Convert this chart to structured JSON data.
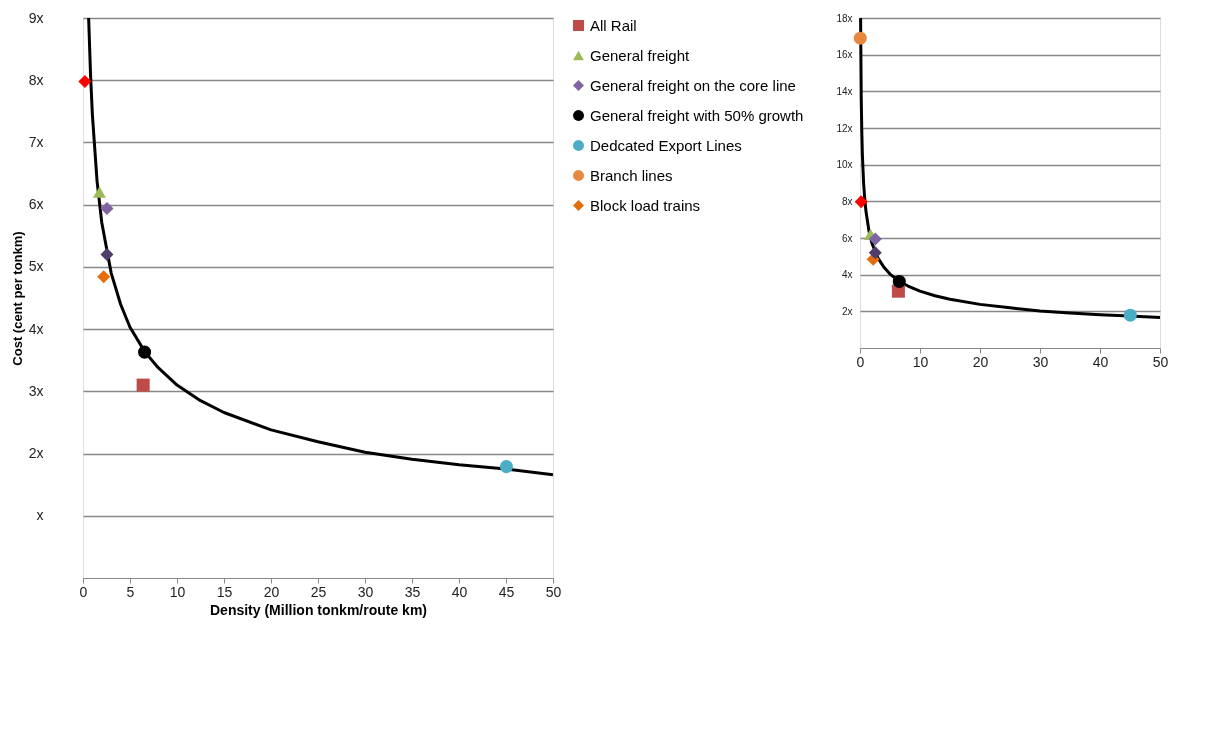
{
  "chart_data": [
    {
      "type": "scatter",
      "xlabel": "Density (Million tonkm/route km)",
      "ylabel": "Cost (cent per tonkm)",
      "xlim": [
        0,
        50
      ],
      "ylim": [
        0,
        9
      ],
      "xticks": [
        0,
        5,
        10,
        15,
        20,
        25,
        30,
        35,
        40,
        45,
        50
      ],
      "yticks": [
        {
          "value": 1,
          "label": "x"
        },
        {
          "value": 2,
          "label": "2x"
        },
        {
          "value": 3,
          "label": "3x"
        },
        {
          "value": 4,
          "label": "4x"
        },
        {
          "value": 5,
          "label": "5x"
        },
        {
          "value": 6,
          "label": "6x"
        },
        {
          "value": 7,
          "label": "7x"
        },
        {
          "value": 8,
          "label": "8x"
        },
        {
          "value": 9,
          "label": "9x"
        }
      ],
      "grid": "y",
      "legend": "right",
      "series": [
        {
          "type": "line",
          "color": "#000000",
          "x": [
            0.6,
            0.8,
            1,
            1.5,
            2,
            3,
            4,
            5,
            6.6,
            8,
            10,
            12.5,
            15,
            20,
            25,
            30,
            35,
            40,
            45,
            50
          ],
          "values": [
            9.0,
            8.1,
            7.44,
            6.37,
            5.71,
            4.9,
            4.4,
            4.03,
            3.63,
            3.38,
            3.1,
            2.85,
            2.66,
            2.38,
            2.19,
            2.02,
            1.91,
            1.82,
            1.75,
            1.66
          ]
        },
        {
          "name": "All Rail",
          "color": "#be4b48",
          "marker": "square",
          "x": [
            6.4
          ],
          "values": [
            3.1
          ]
        },
        {
          "name": "General freight",
          "color": "#9bbb59",
          "marker": "triangle",
          "x": [
            1.75
          ],
          "values": [
            6.2
          ]
        },
        {
          "name": "General freight on the core line",
          "color": "#8064a2",
          "marker": "diamond",
          "x": [
            2.55
          ],
          "values": [
            5.94
          ]
        },
        {
          "name": "General freight with 50% growth",
          "color": "#000000",
          "marker": "circle",
          "x": [
            6.55
          ],
          "values": [
            3.63
          ]
        },
        {
          "name": "Dedcated Export Lines",
          "color": "#4bacc6",
          "marker": "circle",
          "x": [
            45.05
          ],
          "values": [
            1.79
          ]
        },
        {
          "name": "Branch lines",
          "color": "#e8873f",
          "marker": "circle"
        },
        {
          "name": "Block load trains",
          "color": "#e46c0a",
          "marker": "diamond",
          "x": [
            2.2
          ],
          "values": [
            4.84
          ]
        },
        {
          "color": "#ff0000",
          "marker": "diamond",
          "x": [
            0.2
          ],
          "values": [
            7.98
          ]
        },
        {
          "color": "#4f3d6b",
          "marker": "diamond",
          "x": [
            2.55
          ],
          "values": [
            5.2
          ]
        }
      ]
    },
    {
      "type": "scatter",
      "xlim": [
        0,
        50
      ],
      "ylim": [
        0,
        18
      ],
      "xticks": [
        0,
        10,
        20,
        30,
        40,
        50
      ],
      "yticks": [
        {
          "value": 2,
          "label": "2x"
        },
        {
          "value": 4,
          "label": "4x"
        },
        {
          "value": 6,
          "label": "6x"
        },
        {
          "value": 8,
          "label": "8x"
        },
        {
          "value": 10,
          "label": "10x"
        },
        {
          "value": 12,
          "label": "12x"
        },
        {
          "value": 14,
          "label": "14x"
        },
        {
          "value": 16,
          "label": "16x"
        },
        {
          "value": 18,
          "label": "18x"
        }
      ],
      "grid": "y",
      "series": [
        {
          "type": "line",
          "color": "#000000",
          "x": [
            0.1,
            0.2,
            0.3,
            0.4,
            0.6,
            0.8,
            1,
            1.5,
            2,
            3,
            4,
            5,
            6.6,
            8,
            10,
            12.5,
            15,
            20,
            25,
            30,
            35,
            40,
            45,
            50
          ],
          "values": [
            18.0,
            13.7,
            11.8,
            10.5,
            9.0,
            8.1,
            7.44,
            6.37,
            5.71,
            4.9,
            4.4,
            4.03,
            3.63,
            3.38,
            3.1,
            2.85,
            2.66,
            2.38,
            2.19,
            2.02,
            1.91,
            1.82,
            1.75,
            1.66
          ]
        },
        {
          "color": "#be4b48",
          "marker": "square",
          "x": [
            6.4
          ],
          "values": [
            3.1
          ]
        },
        {
          "color": "#9bbb59",
          "marker": "triangle",
          "x": [
            1.75
          ],
          "values": [
            6.2
          ]
        },
        {
          "color": "#8064a2",
          "marker": "diamond",
          "x": [
            2.55
          ],
          "values": [
            5.94
          ]
        },
        {
          "color": "#000000",
          "marker": "circle",
          "x": [
            6.55
          ],
          "values": [
            3.63
          ]
        },
        {
          "color": "#4bacc6",
          "marker": "circle",
          "x": [
            45.05
          ],
          "values": [
            1.79
          ]
        },
        {
          "color": "#e8873f",
          "marker": "circle",
          "x": [
            0.05
          ],
          "values": [
            16.9
          ]
        },
        {
          "color": "#e46c0a",
          "marker": "diamond",
          "x": [
            2.2
          ],
          "values": [
            4.84
          ]
        },
        {
          "color": "#ff0000",
          "marker": "diamond",
          "x": [
            0.2
          ],
          "values": [
            7.98
          ]
        },
        {
          "color": "#4f3d6b",
          "marker": "diamond",
          "x": [
            2.55
          ],
          "values": [
            5.2
          ]
        }
      ]
    }
  ]
}
